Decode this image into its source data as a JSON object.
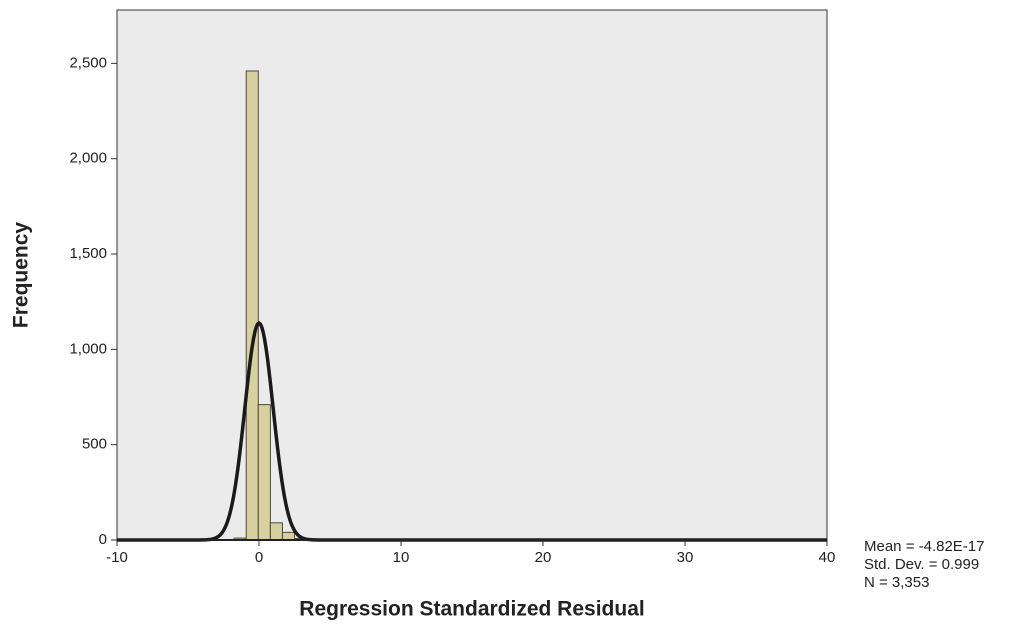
{
  "chart_data": {
    "type": "histogram",
    "x_label": "Regression Standardized Residual",
    "y_label": "Frequency",
    "bins": [
      -1.75,
      -0.9,
      -0.05,
      0.8,
      1.65,
      2.5,
      3.35
    ],
    "values": [
      10,
      2460,
      710,
      90,
      40,
      8
    ],
    "color": "#d6d19e",
    "curve": {
      "mean": -4.82e-17,
      "sd": 0.999,
      "n": 3353,
      "color": "#1a1a1a"
    },
    "stats": [
      "Mean = -4.82E-17",
      "Std. Dev. = 0.999",
      "N = 3,353"
    ],
    "xlim": [
      -10,
      40
    ],
    "xticks": [
      -10,
      0,
      10,
      20,
      30,
      40
    ],
    "ylim": [
      0,
      2780
    ],
    "yticks": [
      0,
      500,
      {
        "value": 1000,
        "label": "1,000"
      },
      {
        "value": 1500,
        "label": "1,500"
      },
      {
        "value": 2000,
        "label": "2,000"
      },
      {
        "value": 2500,
        "label": "2,500"
      }
    ]
  }
}
